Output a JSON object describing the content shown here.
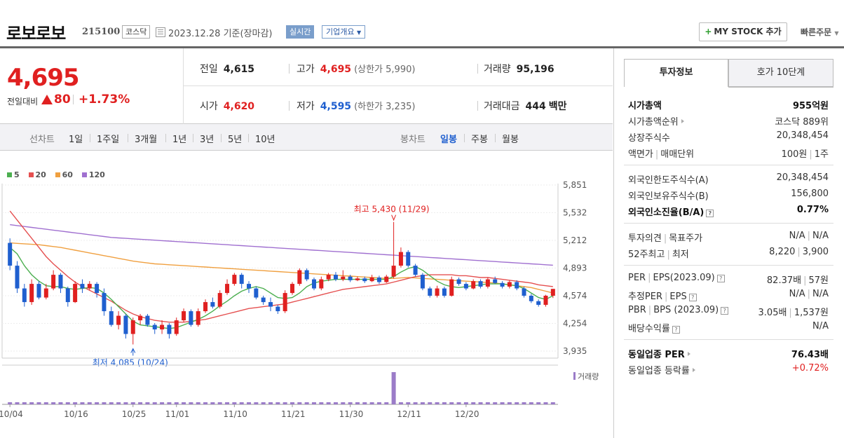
{
  "header": {
    "name": "로보로보",
    "code": "215100",
    "market": "코스닥",
    "date_text": "2023.12.28  기준(장마감)",
    "realtime": "실시간",
    "overview": "기업개요",
    "mystock": "MY STOCK 추가",
    "quick_order": "빠른주문"
  },
  "price": {
    "now": "4,695",
    "change_label": "전일대비",
    "change": "80",
    "rate": "+1.73%",
    "prev_label": "전일",
    "prev": "4,615",
    "high_label": "고가",
    "high": "4,695",
    "upper_limit": "(상한가 5,990)",
    "volume_label": "거래량",
    "volume": "95,196",
    "open_label": "시가",
    "open": "4,620",
    "low_label": "저가",
    "low": "4,595",
    "lower_limit": "(하한가 3,235)",
    "amount_label": "거래대금",
    "amount": "444",
    "amount_unit": "백만"
  },
  "toolbar": {
    "line_label": "선차트",
    "periods": [
      "1일",
      "1주일",
      "3개월",
      "1년",
      "3년",
      "5년",
      "10년"
    ],
    "candle_label": "봉차트",
    "candles": [
      "일봉",
      "주봉",
      "월봉"
    ]
  },
  "chart_data": {
    "type": "line",
    "ma_legend": [
      {
        "name": "5",
        "color": "#4caf50"
      },
      {
        "name": "20",
        "color": "#e55050"
      },
      {
        "name": "60",
        "color": "#f0a040"
      },
      {
        "name": "120",
        "color": "#a070d0"
      }
    ],
    "y_ticks": [
      "5,851",
      "5,532",
      "5,212",
      "4,893",
      "4,574",
      "4,254",
      "3,935"
    ],
    "ylim": [
      3935,
      5851
    ],
    "x_ticks": [
      "10/04",
      "10/16",
      "10/25",
      "11/01",
      "11/10",
      "11/21",
      "11/30",
      "12/11",
      "12/20"
    ],
    "annotation_high": "최고 5,430 (11/29)",
    "annotation_low": "최저 4,085 (10/24)",
    "volume_label": "거래량",
    "candles": [
      [
        5200,
        4950,
        5250,
        4900
      ],
      [
        4950,
        4700,
        5000,
        4650
      ],
      [
        4700,
        4550,
        4750,
        4500
      ],
      [
        4550,
        4750,
        4800,
        4520
      ],
      [
        4750,
        4600,
        4780,
        4580
      ],
      [
        4600,
        4700,
        4750,
        4580
      ],
      [
        4700,
        4850,
        4900,
        4680
      ],
      [
        4850,
        4700,
        4870,
        4650
      ],
      [
        4700,
        4550,
        4720,
        4500
      ],
      [
        4550,
        4750,
        4780,
        4540
      ],
      [
        4750,
        4700,
        4800,
        4650
      ],
      [
        4700,
        4750,
        4780,
        4680
      ],
      [
        4750,
        4650,
        4770,
        4600
      ],
      [
        4650,
        4450,
        4700,
        4400
      ],
      [
        4450,
        4300,
        4500,
        4280
      ],
      [
        4300,
        4400,
        4450,
        4250
      ],
      [
        4400,
        4200,
        4420,
        4150
      ],
      [
        4200,
        4350,
        4380,
        4085
      ],
      [
        4350,
        4400,
        4420,
        4300
      ],
      [
        4400,
        4300,
        4420,
        4280
      ],
      [
        4300,
        4250,
        4320,
        4200
      ],
      [
        4250,
        4300,
        4350,
        4200
      ],
      [
        4300,
        4200,
        4320,
        4150
      ],
      [
        4200,
        4350,
        4380,
        4180
      ],
      [
        4350,
        4450,
        4480,
        4330
      ],
      [
        4450,
        4300,
        4470,
        4280
      ],
      [
        4300,
        4450,
        4480,
        4280
      ],
      [
        4450,
        4550,
        4580,
        4430
      ],
      [
        4550,
        4500,
        4600,
        4480
      ],
      [
        4500,
        4650,
        4680,
        4480
      ],
      [
        4650,
        4750,
        4800,
        4630
      ],
      [
        4750,
        4850,
        4870,
        4730
      ],
      [
        4850,
        4750,
        4870,
        4700
      ],
      [
        4750,
        4700,
        4780,
        4650
      ],
      [
        4700,
        4600,
        4720,
        4580
      ],
      [
        4600,
        4550,
        4620,
        4520
      ],
      [
        4550,
        4500,
        4600,
        4450
      ],
      [
        4500,
        4450,
        4520,
        4420
      ],
      [
        4450,
        4650,
        4680,
        4430
      ],
      [
        4650,
        4750,
        4770,
        4630
      ],
      [
        4750,
        4900,
        4920,
        4730
      ],
      [
        4900,
        4800,
        4920,
        4780
      ],
      [
        4800,
        4700,
        4820,
        4680
      ],
      [
        4700,
        4800,
        4830,
        4680
      ],
      [
        4800,
        4850,
        4870,
        4780
      ],
      [
        4850,
        4800,
        4880,
        4780
      ],
      [
        4800,
        4830,
        4900,
        4780
      ],
      [
        4830,
        4790,
        4850,
        4770
      ],
      [
        4790,
        4810,
        4830,
        4780
      ],
      [
        4810,
        4780,
        4830,
        4760
      ],
      [
        4780,
        4820,
        4850,
        4770
      ],
      [
        4820,
        4770,
        4840,
        4750
      ],
      [
        4770,
        4830,
        4850,
        4760
      ],
      [
        4830,
        4950,
        5430,
        4810
      ],
      [
        4950,
        5100,
        5150,
        4930
      ],
      [
        5100,
        4950,
        5120,
        4930
      ],
      [
        4950,
        4850,
        4970,
        4830
      ],
      [
        4850,
        4700,
        4870,
        4680
      ],
      [
        4700,
        4620,
        4720,
        4600
      ],
      [
        4620,
        4700,
        4730,
        4600
      ],
      [
        4700,
        4620,
        4720,
        4600
      ],
      [
        4620,
        4800,
        4830,
        4610
      ],
      [
        4800,
        4750,
        4820,
        4730
      ],
      [
        4750,
        4700,
        4770,
        4680
      ],
      [
        4700,
        4780,
        4800,
        4690
      ],
      [
        4780,
        4720,
        4800,
        4700
      ],
      [
        4720,
        4800,
        4820,
        4700
      ],
      [
        4800,
        4760,
        4830,
        4750
      ],
      [
        4760,
        4720,
        4780,
        4700
      ],
      [
        4720,
        4770,
        4790,
        4700
      ],
      [
        4770,
        4700,
        4790,
        4680
      ],
      [
        4700,
        4620,
        4720,
        4600
      ],
      [
        4620,
        4560,
        4640,
        4540
      ],
      [
        4560,
        4520,
        4580,
        4500
      ],
      [
        4520,
        4620,
        4630,
        4500
      ],
      [
        4620,
        4695,
        4695,
        4595
      ]
    ],
    "volumes": [
      3,
      3,
      3,
      3,
      3,
      3,
      3,
      3,
      3,
      3,
      3,
      3,
      3,
      3,
      3,
      3,
      3,
      3,
      3,
      3,
      3,
      3,
      3,
      3,
      3,
      3,
      3,
      3,
      3,
      3,
      3,
      3,
      3,
      3,
      3,
      3,
      3,
      3,
      3,
      3,
      3,
      3,
      3,
      3,
      3,
      3,
      3,
      3,
      3,
      3,
      3,
      3,
      3,
      45,
      3,
      3,
      3,
      3,
      3,
      3,
      3,
      3,
      3,
      3,
      3,
      3,
      3,
      3,
      3,
      3,
      3,
      3,
      3,
      3,
      3,
      3
    ],
    "ma5": [
      5150,
      5080,
      4950,
      4850,
      4780,
      4730,
      4720,
      4720,
      4700,
      4690,
      4700,
      4710,
      4700,
      4650,
      4580,
      4500,
      4420,
      4340,
      4300,
      4290,
      4280,
      4270,
      4260,
      4270,
      4300,
      4330,
      4360,
      4400,
      4450,
      4510,
      4560,
      4620,
      4670,
      4700,
      4720,
      4700,
      4650,
      4600,
      4590,
      4600,
      4650,
      4720,
      4760,
      4780,
      4790,
      4800,
      4800,
      4800,
      4800,
      4800,
      4800,
      4800,
      4800,
      4830,
      4880,
      4920,
      4940,
      4900,
      4840,
      4780,
      4740,
      4720,
      4710,
      4720,
      4730,
      4740,
      4750,
      4750,
      4750,
      4740,
      4730,
      4700,
      4650,
      4600,
      4580,
      4620
    ],
    "ma20": [
      5550,
      5450,
      5350,
      5250,
      5150,
      5050,
      4970,
      4900,
      4830,
      4770,
      4720,
      4680,
      4640,
      4600,
      4560,
      4510,
      4460,
      4420,
      4390,
      4370,
      4350,
      4340,
      4330,
      4330,
      4330,
      4340,
      4350,
      4360,
      4380,
      4400,
      4420,
      4440,
      4460,
      4480,
      4490,
      4500,
      4510,
      4520,
      4530,
      4550,
      4570,
      4590,
      4610,
      4630,
      4650,
      4670,
      4690,
      4700,
      4710,
      4720,
      4730,
      4740,
      4750,
      4770,
      4790,
      4810,
      4830,
      4840,
      4850,
      4850,
      4850,
      4850,
      4840,
      4840,
      4830,
      4820,
      4820,
      4810,
      4800,
      4790,
      4780,
      4770,
      4760,
      4740,
      4730,
      4720
    ],
    "ma60": [
      5200,
      5195,
      5190,
      5185,
      5180,
      5170,
      5160,
      5150,
      5135,
      5120,
      5105,
      5090,
      5075,
      5060,
      5045,
      5030,
      5015,
      5000,
      4990,
      4980,
      4970,
      4965,
      4960,
      4955,
      4950,
      4945,
      4940,
      4935,
      4930,
      4925,
      4920,
      4915,
      4910,
      4905,
      4900,
      4895,
      4890,
      4885,
      4880,
      4875,
      4870,
      4865,
      4860,
      4855,
      4850,
      4845,
      4840,
      4835,
      4830,
      4825,
      4820,
      4815,
      4810,
      4810,
      4815,
      4820,
      4815,
      4810,
      4805,
      4800,
      4795,
      4790,
      4785,
      4780,
      4775,
      4770,
      4765,
      4760,
      4750,
      4740,
      4730,
      4720,
      4710,
      4690,
      4670,
      4650
    ],
    "ma120": [
      5400,
      5390,
      5380,
      5370,
      5360,
      5350,
      5340,
      5330,
      5320,
      5310,
      5300,
      5290,
      5280,
      5270,
      5260,
      5255,
      5250,
      5245,
      5240,
      5235,
      5230,
      5225,
      5220,
      5215,
      5210,
      5205,
      5200,
      5195,
      5190,
      5185,
      5180,
      5175,
      5170,
      5165,
      5160,
      5155,
      5150,
      5145,
      5140,
      5135,
      5130,
      5125,
      5120,
      5115,
      5110,
      5105,
      5100,
      5095,
      5090,
      5085,
      5080,
      5075,
      5070,
      5065,
      5060,
      5055,
      5050,
      5045,
      5040,
      5035,
      5030,
      5025,
      5020,
      5015,
      5010,
      5005,
      5000,
      4995,
      4990,
      4985,
      4980,
      4975,
      4970,
      4965,
      4960,
      4955
    ]
  },
  "panel": {
    "tab_active": "투자정보",
    "tab_inactive": "호가 10단계",
    "rows1": [
      {
        "k": "시가총액",
        "v": "955억원",
        "bold": true
      },
      {
        "k": "시가총액순위",
        "v": "코스닥 889위",
        "arrow": true
      },
      {
        "k": "상장주식수",
        "v": "20,348,454"
      },
      {
        "k": "액면가",
        "k2": "매매단위",
        "v": "100원",
        "v2": "1주"
      }
    ],
    "rows2": [
      {
        "k": "외국인한도주식수(A)",
        "v": "20,348,454"
      },
      {
        "k": "외국인보유주식수(B)",
        "v": "156,800"
      },
      {
        "k": "외국인소진율(B/A)",
        "v": "0.77%",
        "bold": true,
        "help": true
      }
    ],
    "rows3": [
      {
        "k": "투자의견",
        "k2": "목표주가",
        "v": "N/A",
        "v2": "N/A"
      },
      {
        "k": "52주최고",
        "k2": "최저",
        "v": "8,220",
        "v2": "3,900"
      }
    ],
    "rows4": [
      {
        "k": "PER",
        "k2": "EPS(2023.09)",
        "v": "82.37배",
        "v2": "57원",
        "help": true
      },
      {
        "k": "추정PER",
        "k2": "EPS",
        "v": "N/A",
        "v2": "N/A",
        "help": true
      },
      {
        "k": "PBR",
        "k2": "BPS (2023.09)",
        "v": "3.05배",
        "v2": "1,537원",
        "help": true
      },
      {
        "k": "배당수익률",
        "v": "N/A",
        "help": true
      }
    ],
    "rows5": [
      {
        "k": "동일업종 PER",
        "v": "76.43배",
        "bold": true,
        "arrow": true
      },
      {
        "k": "동일업종 등락률",
        "v": "+0.72%",
        "red": true,
        "arrow": true
      }
    ]
  }
}
